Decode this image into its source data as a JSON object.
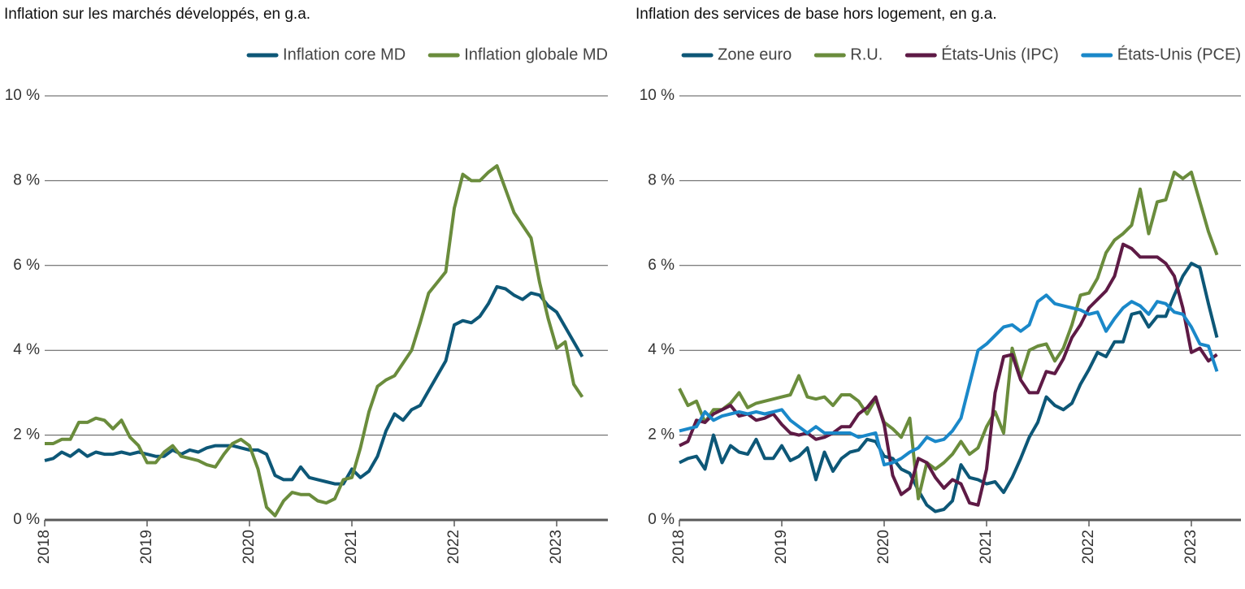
{
  "chart_data": [
    {
      "type": "line",
      "title": "Inflation sur les marchés développés, en g.a.",
      "categories": [
        "2018",
        null,
        null,
        null,
        null,
        null,
        null,
        null,
        null,
        null,
        null,
        null,
        "2019",
        null,
        null,
        null,
        null,
        null,
        null,
        null,
        null,
        null,
        null,
        null,
        "2020",
        null,
        null,
        null,
        null,
        null,
        null,
        null,
        null,
        null,
        null,
        null,
        "2021",
        null,
        null,
        null,
        null,
        null,
        null,
        null,
        null,
        null,
        null,
        null,
        "2022",
        null,
        null,
        null,
        null,
        null,
        null,
        null,
        null,
        null,
        null,
        null,
        "2023",
        null,
        null,
        null
      ],
      "series": [
        {
          "name": "Inflation core MD",
          "color": "#0d5777",
          "values": [
            1.4,
            1.45,
            1.6,
            1.5,
            1.65,
            1.5,
            1.6,
            1.55,
            1.55,
            1.6,
            1.55,
            1.6,
            1.55,
            1.5,
            1.5,
            1.65,
            1.55,
            1.65,
            1.6,
            1.7,
            1.75,
            1.75,
            1.75,
            1.7,
            1.65,
            1.65,
            1.55,
            1.05,
            0.95,
            0.95,
            1.25,
            1.0,
            0.95,
            0.9,
            0.85,
            0.85,
            1.2,
            1.0,
            1.15,
            1.5,
            2.1,
            2.5,
            2.35,
            2.6,
            2.7,
            3.05,
            3.4,
            3.75,
            4.6,
            4.7,
            4.65,
            4.8,
            5.1,
            5.5,
            5.45,
            5.3,
            5.2,
            5.35,
            5.3,
            5.05,
            4.9,
            4.55,
            4.2,
            3.85
          ]
        },
        {
          "name": "Inflation globale MD",
          "color": "#6a8c3c",
          "values": [
            1.8,
            1.8,
            1.9,
            1.9,
            2.3,
            2.3,
            2.4,
            2.35,
            2.15,
            2.35,
            1.95,
            1.75,
            1.35,
            1.35,
            1.6,
            1.75,
            1.5,
            1.45,
            1.4,
            1.3,
            1.25,
            1.55,
            1.8,
            1.9,
            1.75,
            1.2,
            0.3,
            0.1,
            0.45,
            0.65,
            0.6,
            0.6,
            0.45,
            0.4,
            0.5,
            0.95,
            1.0,
            1.7,
            2.55,
            3.15,
            3.3,
            3.4,
            3.7,
            4.0,
            4.65,
            5.35,
            5.6,
            5.85,
            7.35,
            8.15,
            8.0,
            8.0,
            8.2,
            8.35,
            7.8,
            7.25,
            6.95,
            6.65,
            5.6,
            4.75,
            4.05,
            4.2,
            3.2,
            2.9
          ]
        }
      ],
      "ylim": [
        0,
        10
      ],
      "yticks": [
        {
          "value": 0,
          "label": "0 %"
        },
        {
          "value": 2,
          "label": "2 %"
        },
        {
          "value": 4,
          "label": "4 %"
        },
        {
          "value": 6,
          "label": "6 %"
        },
        {
          "value": 8,
          "label": "8 %"
        },
        {
          "value": 10,
          "label": "10 %"
        }
      ],
      "grid": true
    },
    {
      "type": "line",
      "title": "Inflation des services de base hors logement, en g.a.",
      "categories": [
        "2018",
        null,
        null,
        null,
        null,
        null,
        null,
        null,
        null,
        null,
        null,
        null,
        "2019",
        null,
        null,
        null,
        null,
        null,
        null,
        null,
        null,
        null,
        null,
        null,
        "2020",
        null,
        null,
        null,
        null,
        null,
        null,
        null,
        null,
        null,
        null,
        null,
        "2021",
        null,
        null,
        null,
        null,
        null,
        null,
        null,
        null,
        null,
        null,
        null,
        "2022",
        null,
        null,
        null,
        null,
        null,
        null,
        null,
        null,
        null,
        null,
        null,
        "2023",
        null,
        null,
        null
      ],
      "series": [
        {
          "name": "Zone euro",
          "color": "#0d5777",
          "values": [
            1.35,
            1.45,
            1.5,
            1.2,
            2.0,
            1.35,
            1.75,
            1.6,
            1.55,
            1.9,
            1.45,
            1.45,
            1.75,
            1.4,
            1.5,
            1.7,
            0.95,
            1.6,
            1.15,
            1.45,
            1.6,
            1.65,
            1.9,
            1.85,
            1.5,
            1.45,
            1.2,
            1.1,
            0.7,
            0.35,
            0.2,
            0.25,
            0.45,
            1.3,
            1.0,
            0.95,
            0.85,
            0.9,
            0.65,
            1.0,
            1.45,
            1.95,
            2.3,
            2.9,
            2.7,
            2.6,
            2.75,
            3.2,
            3.55,
            3.95,
            3.85,
            4.2,
            4.2,
            4.85,
            4.9,
            4.55,
            4.8,
            4.8,
            5.3,
            5.75,
            6.05,
            5.95,
            5.1,
            4.3
          ]
        },
        {
          "name": "R.U.",
          "color": "#6a8c3c",
          "values": [
            3.1,
            2.7,
            2.8,
            2.3,
            2.6,
            2.6,
            2.75,
            3.0,
            2.65,
            2.75,
            2.8,
            2.85,
            2.9,
            2.95,
            3.4,
            2.9,
            2.85,
            2.9,
            2.7,
            2.95,
            2.95,
            2.8,
            2.5,
            2.85,
            2.3,
            2.15,
            1.95,
            2.4,
            0.5,
            1.35,
            1.2,
            1.35,
            1.55,
            1.85,
            1.55,
            1.7,
            2.2,
            2.55,
            2.05,
            4.05,
            3.35,
            4.0,
            4.1,
            4.15,
            3.75,
            4.05,
            4.6,
            5.3,
            5.35,
            5.7,
            6.3,
            6.6,
            6.75,
            6.95,
            7.8,
            6.75,
            7.5,
            7.55,
            8.2,
            8.05,
            8.2,
            7.5,
            6.8,
            6.25
          ]
        },
        {
          "name": "États-Unis (IPC)",
          "color": "#5e1a45",
          "values": [
            1.75,
            1.85,
            2.35,
            2.3,
            2.5,
            2.6,
            2.7,
            2.45,
            2.5,
            2.35,
            2.4,
            2.5,
            2.25,
            2.05,
            2.0,
            2.05,
            1.9,
            1.95,
            2.05,
            2.2,
            2.2,
            2.5,
            2.65,
            2.9,
            2.25,
            1.05,
            0.6,
            0.75,
            1.45,
            1.35,
            1.0,
            0.75,
            0.95,
            0.85,
            0.4,
            0.35,
            1.2,
            3.0,
            3.85,
            3.9,
            3.3,
            3.0,
            3.0,
            3.5,
            3.45,
            3.8,
            4.3,
            4.6,
            5.0,
            5.2,
            5.4,
            5.75,
            6.5,
            6.4,
            6.2,
            6.2,
            6.2,
            6.05,
            5.75,
            5.0,
            3.95,
            4.05,
            3.75,
            3.9
          ]
        },
        {
          "name": "États-Unis (PCE)",
          "color": "#1a88c9",
          "values": [
            2.1,
            2.15,
            2.2,
            2.55,
            2.35,
            2.45,
            2.5,
            2.55,
            2.5,
            2.55,
            2.5,
            2.55,
            2.6,
            2.35,
            2.2,
            2.05,
            2.2,
            2.05,
            2.05,
            2.05,
            2.05,
            1.95,
            2.0,
            2.05,
            1.3,
            1.35,
            1.45,
            1.6,
            1.7,
            1.95,
            1.85,
            1.9,
            2.1,
            2.4,
            3.2,
            4.0,
            4.15,
            4.35,
            4.55,
            4.6,
            4.45,
            4.6,
            5.15,
            5.3,
            5.1,
            5.05,
            5.0,
            4.95,
            4.85,
            4.9,
            4.45,
            4.75,
            5.0,
            5.15,
            5.05,
            4.85,
            5.15,
            5.1,
            4.9,
            4.85,
            4.55,
            4.15,
            4.1,
            3.5
          ]
        }
      ],
      "ylim": [
        0,
        10
      ],
      "yticks": [
        {
          "value": 0,
          "label": "0 %"
        },
        {
          "value": 2,
          "label": "2 %"
        },
        {
          "value": 4,
          "label": "4 %"
        },
        {
          "value": 6,
          "label": "6 %"
        },
        {
          "value": 8,
          "label": "8 %"
        },
        {
          "value": 10,
          "label": "10 %"
        }
      ],
      "grid": true
    }
  ]
}
